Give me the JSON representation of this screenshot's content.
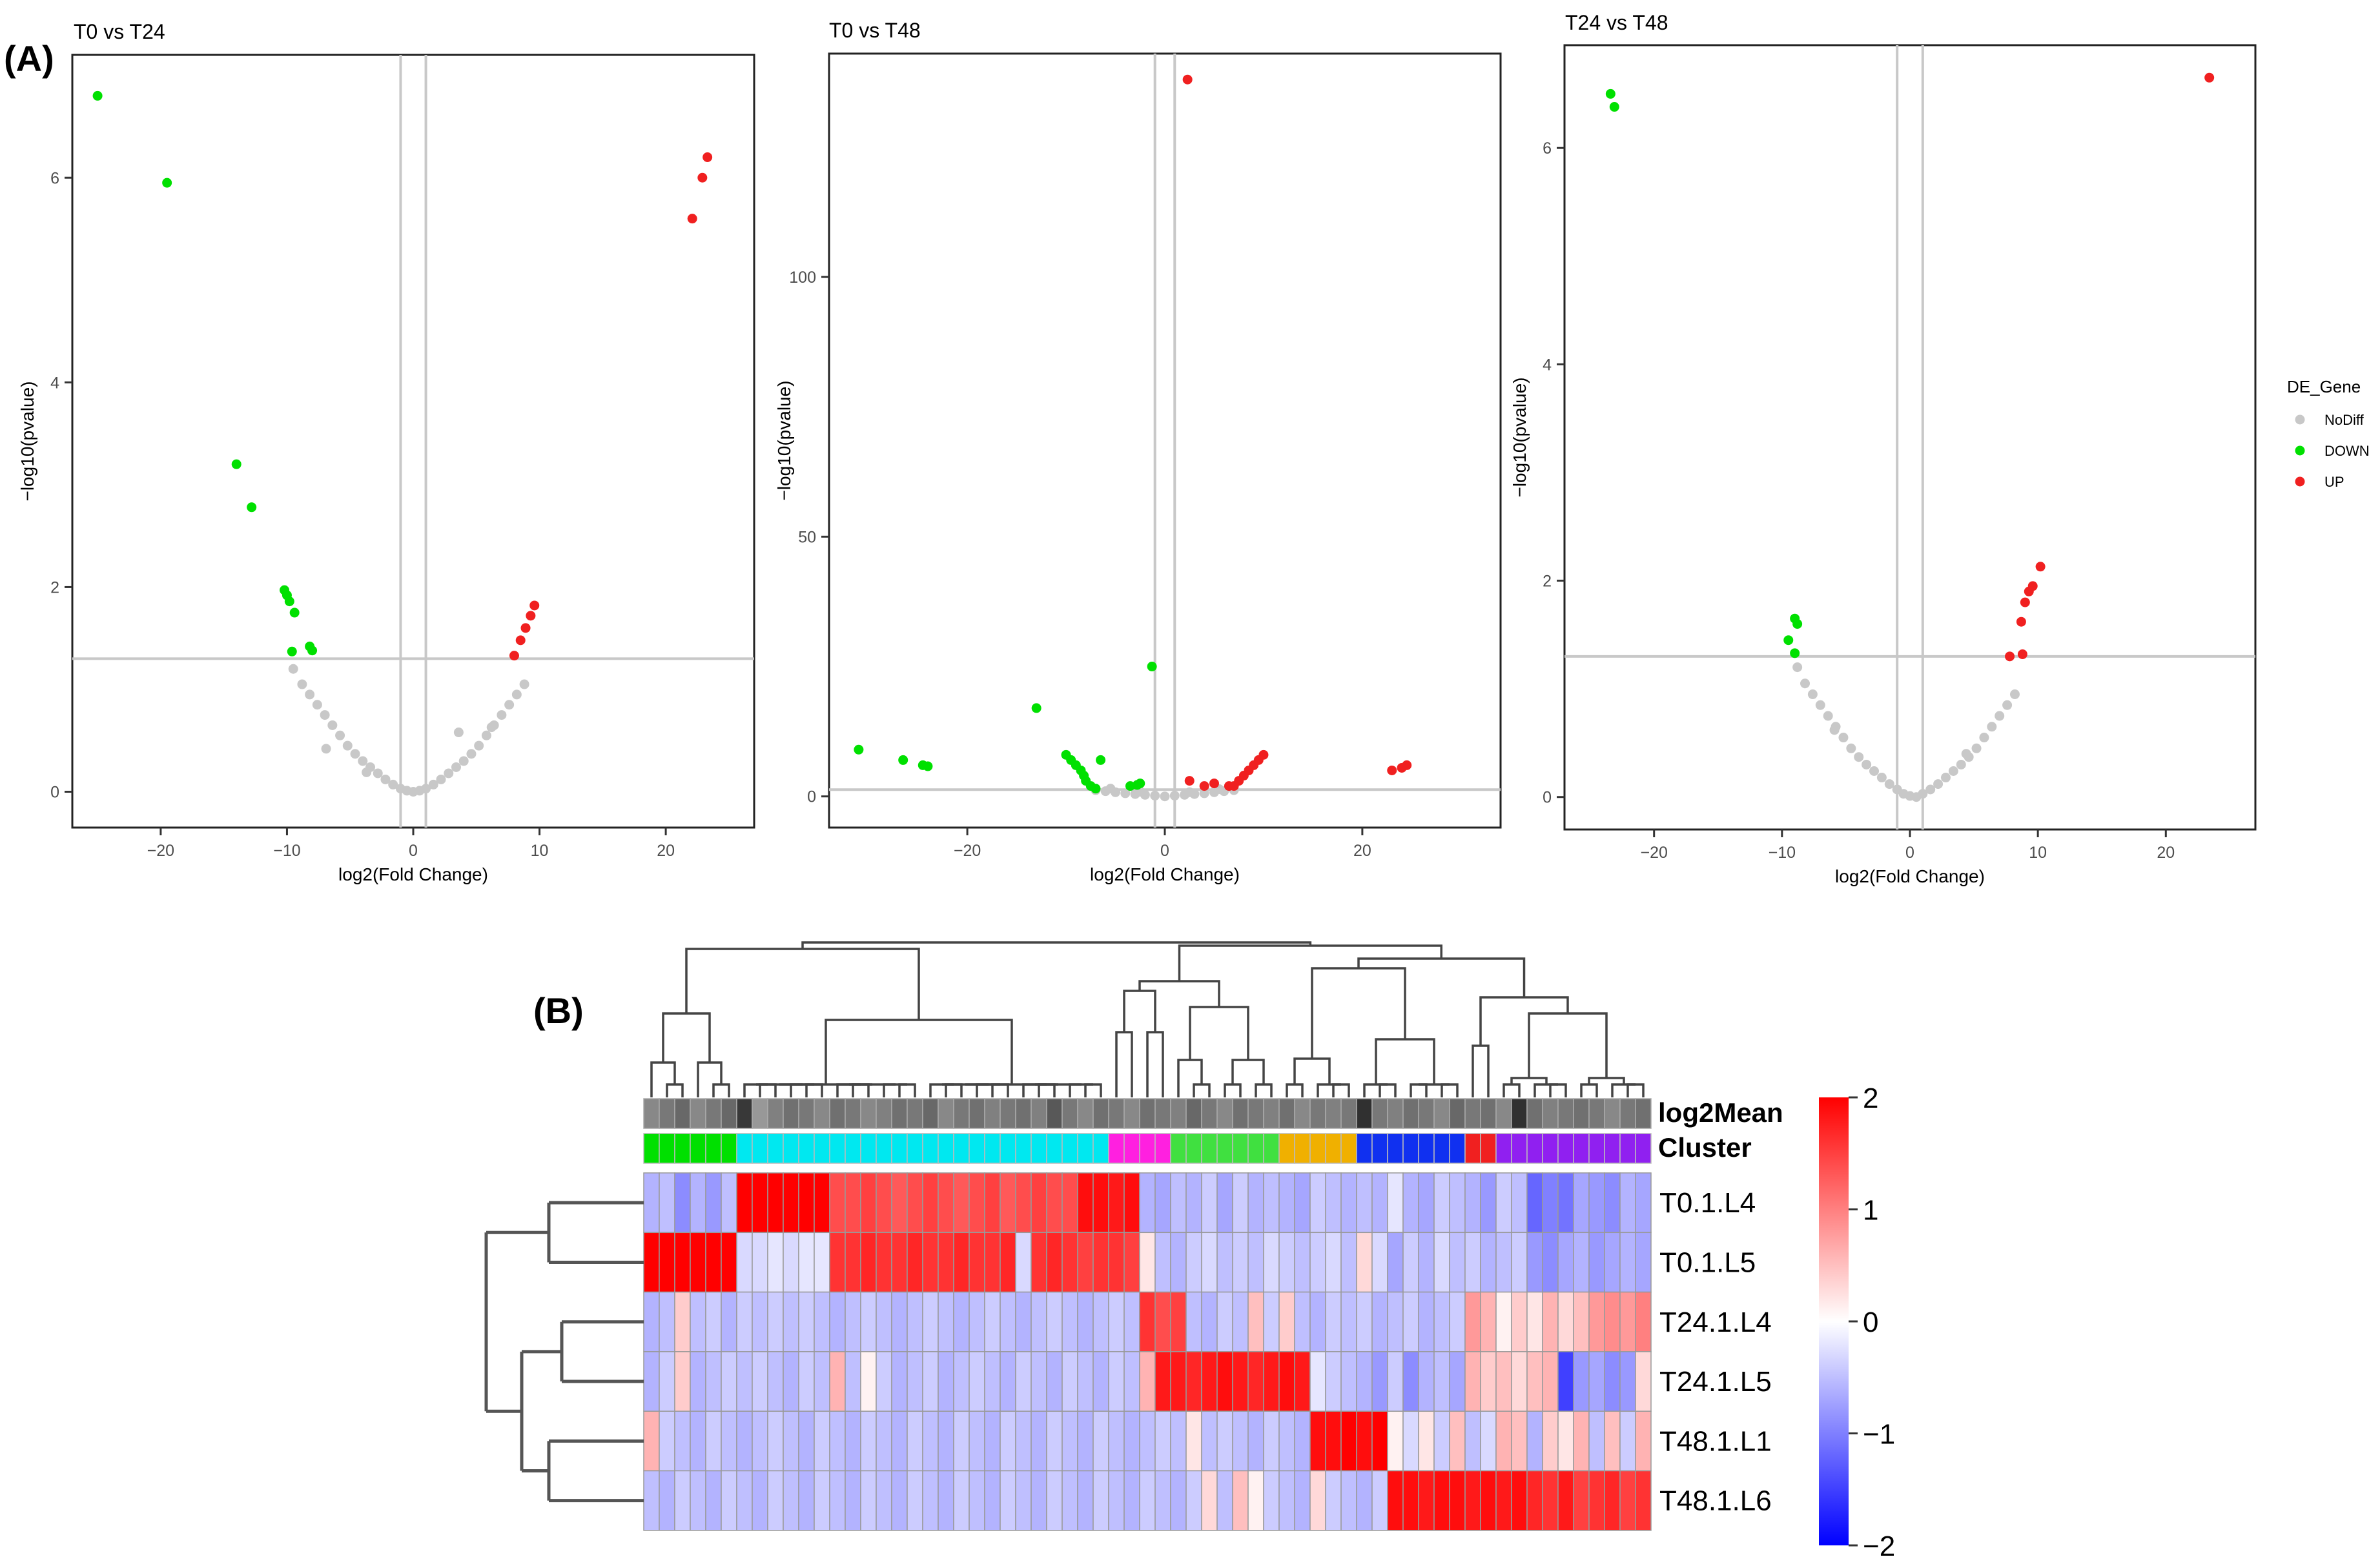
{
  "figure": {
    "panel_a_label": "(A)",
    "panel_b_label": "(B)"
  },
  "chart_data": [
    {
      "type": "scatter",
      "title": "T0 vs T24",
      "xlabel": "log2(Fold Change)",
      "ylabel": "−log10(pvalue)",
      "xlim": [
        -27,
        27
      ],
      "ylim": [
        -0.35,
        7.2
      ],
      "xticks": [
        -20,
        -10,
        0,
        10,
        20
      ],
      "xtick_labels": [
        "−20",
        "−10",
        "0",
        "10",
        "20"
      ],
      "yticks": [
        0,
        2,
        4,
        6
      ],
      "ytick_labels": [
        "0",
        "2",
        "4",
        "6"
      ],
      "vlines": [
        -1,
        1
      ],
      "hline": 1.3,
      "series": [
        {
          "name": "NoDiff",
          "color": "#c8c8c8",
          "x": [
            -9.5,
            -8.8,
            -8.2,
            -7.6,
            -7.0,
            -6.4,
            -5.8,
            -5.2,
            -4.6,
            -4.0,
            -3.4,
            -2.8,
            -2.2,
            -1.6,
            -1.0,
            -0.5,
            0.0,
            0.5,
            1.0,
            1.6,
            2.2,
            2.8,
            3.4,
            4.0,
            4.6,
            5.2,
            5.8,
            6.4,
            7.0,
            7.6,
            8.2,
            8.8,
            -6.9,
            -3.7,
            3.6,
            6.2
          ],
          "y": [
            1.2,
            1.05,
            0.95,
            0.85,
            0.75,
            0.65,
            0.55,
            0.45,
            0.37,
            0.3,
            0.24,
            0.18,
            0.12,
            0.07,
            0.03,
            0.01,
            0.0,
            0.01,
            0.03,
            0.07,
            0.12,
            0.18,
            0.24,
            0.3,
            0.37,
            0.45,
            0.55,
            0.65,
            0.75,
            0.85,
            0.95,
            1.05,
            0.42,
            0.19,
            0.58,
            0.63
          ]
        },
        {
          "name": "DOWN",
          "color": "#00e000",
          "x": [
            -25,
            -19.5,
            -14,
            -12.8,
            -10.2,
            -10.0,
            -9.8,
            -9.4,
            -9.6,
            -8.2,
            -8.0
          ],
          "y": [
            6.8,
            5.95,
            3.2,
            2.78,
            1.97,
            1.92,
            1.86,
            1.75,
            1.37,
            1.42,
            1.38
          ]
        },
        {
          "name": "UP",
          "color": "#f02020",
          "x": [
            23.3,
            22.9,
            22.1,
            9.6,
            9.3,
            8.9,
            8.5,
            8.0
          ],
          "y": [
            6.2,
            6.0,
            5.6,
            1.82,
            1.72,
            1.6,
            1.48,
            1.33
          ]
        }
      ]
    },
    {
      "type": "scatter",
      "title": "T0 vs T48",
      "xlabel": "log2(Fold Change)",
      "ylabel": "−log10(pvalue)",
      "xlim": [
        -34,
        34
      ],
      "ylim": [
        -6,
        143
      ],
      "xticks": [
        -20,
        0,
        20
      ],
      "xtick_labels": [
        "−20",
        "0",
        "20"
      ],
      "yticks": [
        0,
        50,
        100
      ],
      "ytick_labels": [
        "0",
        "50",
        "100"
      ],
      "vlines": [
        -1,
        1
      ],
      "hline": 1.3,
      "series": [
        {
          "name": "NoDiff",
          "color": "#c8c8c8",
          "x": [
            -7.0,
            -6.0,
            -5.0,
            -4.0,
            -3.0,
            -2.0,
            -1.0,
            0.0,
            1.0,
            2.0,
            3.0,
            4.0,
            5.0,
            6.0,
            7.0,
            -5.5,
            5.5,
            -2.5,
            2.5
          ],
          "y": [
            1.2,
            1.0,
            0.8,
            0.6,
            0.45,
            0.3,
            0.15,
            0.0,
            0.15,
            0.3,
            0.45,
            0.6,
            0.8,
            1.0,
            1.2,
            1.5,
            1.4,
            0.9,
            0.8
          ]
        },
        {
          "name": "DOWN",
          "color": "#00e000",
          "x": [
            -31,
            -26.5,
            -24.5,
            -24,
            -13,
            -10,
            -9.5,
            -9,
            -8.5,
            -8.2,
            -8,
            -7.5,
            -7,
            -6.5,
            -1.3,
            -2.5,
            -3.5,
            -2.8
          ],
          "y": [
            9,
            7,
            6,
            5.8,
            17,
            8,
            7,
            6,
            5,
            4,
            3,
            2,
            1.5,
            7,
            25,
            2.5,
            2,
            2.2
          ]
        },
        {
          "name": "UP",
          "color": "#f02020",
          "x": [
            2.3,
            24.5,
            24,
            23,
            10,
            9.5,
            9,
            8.5,
            8,
            7.5,
            7,
            6.5,
            4,
            2.5,
            5
          ],
          "y": [
            138,
            6,
            5.5,
            5,
            8,
            7,
            6,
            5,
            4,
            3,
            2,
            2,
            2,
            3,
            2.5
          ]
        }
      ]
    },
    {
      "type": "scatter",
      "title": "T24 vs T48",
      "xlabel": "log2(Fold Change)",
      "ylabel": "−log10(pvalue)",
      "xlim": [
        -27,
        27
      ],
      "ylim": [
        -0.3,
        6.95
      ],
      "xticks": [
        -20,
        -10,
        0,
        10,
        20
      ],
      "xtick_labels": [
        "−20",
        "−10",
        "0",
        "10",
        "20"
      ],
      "yticks": [
        0,
        2,
        4,
        6
      ],
      "ytick_labels": [
        "0",
        "2",
        "4",
        "6"
      ],
      "vlines": [
        -1,
        1
      ],
      "hline": 1.3,
      "legend": {
        "title": "DE_Gene",
        "entries": [
          "NoDiff",
          "DOWN",
          "UP"
        ],
        "position": "right"
      },
      "series": [
        {
          "name": "NoDiff",
          "color": "#c8c8c8",
          "x": [
            -8.8,
            -8.2,
            -7.6,
            -7.0,
            -6.4,
            -5.8,
            -5.2,
            -4.6,
            -4.0,
            -3.4,
            -2.8,
            -2.2,
            -1.6,
            -1.0,
            -0.5,
            0.0,
            0.5,
            1.0,
            1.6,
            2.2,
            2.8,
            3.4,
            4.0,
            4.6,
            5.2,
            5.8,
            6.4,
            7.0,
            7.6,
            8.2,
            -5.9,
            4.4
          ],
          "y": [
            1.2,
            1.05,
            0.95,
            0.85,
            0.75,
            0.65,
            0.55,
            0.45,
            0.37,
            0.3,
            0.24,
            0.18,
            0.12,
            0.07,
            0.03,
            0.01,
            0.0,
            0.03,
            0.07,
            0.12,
            0.18,
            0.24,
            0.3,
            0.37,
            0.45,
            0.55,
            0.65,
            0.75,
            0.85,
            0.95,
            0.62,
            0.4
          ]
        },
        {
          "name": "DOWN",
          "color": "#00e000",
          "x": [
            -23.4,
            -23.1,
            -9.0,
            -8.8,
            -9.5,
            -9.0
          ],
          "y": [
            6.5,
            6.38,
            1.65,
            1.6,
            1.45,
            1.33
          ]
        },
        {
          "name": "UP",
          "color": "#f02020",
          "x": [
            23.4,
            10.2,
            9.6,
            9.3,
            9.0,
            8.7,
            7.8,
            8.8
          ],
          "y": [
            6.65,
            2.13,
            1.95,
            1.9,
            1.8,
            1.62,
            1.3,
            1.32
          ]
        }
      ]
    },
    {
      "type": "heatmap",
      "title": "",
      "rows": [
        "T0.1.L4",
        "T0.1.L5",
        "T24.1.L4",
        "T24.1.L5",
        "T48.1.L1",
        "T48.1.L6"
      ],
      "annotation_labels": [
        "log2Mean",
        "Cluster"
      ],
      "legend_ticks": [
        2,
        1,
        0,
        -1,
        -2
      ],
      "legend_tick_labels": [
        "2",
        "1",
        "0",
        "−1",
        "−2"
      ],
      "colorscale": [
        "#0000ff",
        "#ffffff",
        "#ff0000"
      ],
      "range": [
        -2,
        2
      ],
      "clusters": [
        {
          "name": "green",
          "color": "#00e000",
          "n": 6
        },
        {
          "name": "cyan",
          "color": "#00e8f0",
          "n": 24
        },
        {
          "name": "magenta",
          "color": "#ff20e0",
          "n": 4
        },
        {
          "name": "lime",
          "color": "#40e040",
          "n": 7
        },
        {
          "name": "orange",
          "color": "#f0b000",
          "n": 5
        },
        {
          "name": "blue",
          "color": "#1030f0",
          "n": 7
        },
        {
          "name": "red",
          "color": "#f02020",
          "n": 2
        },
        {
          "name": "violet",
          "color": "#9020f0",
          "n": 10
        }
      ],
      "log2mean": [
        0.6,
        0.5,
        0.4,
        0.6,
        0.5,
        0.4,
        0.1,
        0.7,
        0.55,
        0.45,
        0.5,
        0.6,
        0.45,
        0.5,
        0.6,
        0.55,
        0.45,
        0.5,
        0.4,
        0.6,
        0.5,
        0.45,
        0.55,
        0.5,
        0.45,
        0.55,
        0.3,
        0.5,
        0.6,
        0.45,
        0.5,
        0.6,
        0.45,
        0.5,
        0.55,
        0.4,
        0.5,
        0.6,
        0.45,
        0.5,
        0.55,
        0.45,
        0.6,
        0.5,
        0.55,
        0.5,
        0.05,
        0.5,
        0.55,
        0.45,
        0.5,
        0.6,
        0.4,
        0.5,
        0.45,
        0.6,
        0.05,
        0.45,
        0.55,
        0.5,
        0.45,
        0.5,
        0.6,
        0.5,
        0.45
      ],
      "values": [
        [
          -0.6,
          -0.5,
          -0.9,
          -0.6,
          -0.8,
          -0.5,
          2,
          2,
          2,
          2,
          2,
          2,
          1.4,
          1.4,
          1.5,
          1.4,
          1.3,
          1.4,
          1.5,
          1.4,
          1.3,
          1.4,
          1.5,
          1.3,
          1.4,
          1.5,
          1.4,
          1.4,
          1.9,
          1.9,
          1.8,
          1.9,
          -0.6,
          -0.7,
          -0.5,
          -0.6,
          -0.4,
          -0.7,
          -0.4,
          -0.6,
          -0.5,
          -0.6,
          -0.7,
          -0.4,
          -0.5,
          -0.6,
          -0.5,
          -0.6,
          -0.2,
          -0.6,
          -0.7,
          -0.4,
          -0.5,
          -0.6,
          -0.8,
          -0.4,
          -0.5,
          -1.2,
          -1.0,
          -1.1,
          -0.7,
          -0.8,
          -0.9,
          -0.6,
          -0.7
        ],
        [
          2,
          2,
          2,
          2,
          2,
          2,
          -0.3,
          -0.3,
          -0.2,
          -0.3,
          -0.2,
          -0.2,
          1.6,
          1.6,
          1.7,
          1.6,
          1.6,
          1.7,
          1.6,
          1.6,
          1.7,
          1.6,
          1.6,
          1.7,
          -0.3,
          1.6,
          1.7,
          1.6,
          1.5,
          1.6,
          1.6,
          1.5,
          0.2,
          -0.5,
          -0.6,
          -0.4,
          -0.3,
          -0.5,
          -0.4,
          -0.5,
          -0.3,
          -0.4,
          -0.5,
          -0.4,
          -0.3,
          -0.5,
          0.3,
          -0.3,
          -0.7,
          -0.4,
          -0.6,
          -0.3,
          -0.5,
          -0.4,
          -0.6,
          -0.5,
          -0.4,
          -0.8,
          -0.9,
          -0.7,
          -0.6,
          -0.8,
          -0.7,
          -0.6,
          -0.7
        ],
        [
          -0.6,
          -0.5,
          0.4,
          -0.5,
          -0.4,
          -0.6,
          -0.4,
          -0.5,
          -0.4,
          -0.5,
          -0.4,
          -0.5,
          -0.6,
          -0.5,
          -0.4,
          -0.5,
          -0.6,
          -0.5,
          -0.4,
          -0.5,
          -0.6,
          -0.5,
          -0.4,
          -0.5,
          -0.6,
          -0.5,
          -0.4,
          -0.5,
          -0.6,
          -0.5,
          -0.4,
          -0.5,
          1.6,
          1.4,
          1.5,
          -0.5,
          -0.6,
          -0.4,
          -0.5,
          0.5,
          -0.4,
          0.4,
          -0.5,
          -0.6,
          -0.4,
          -0.5,
          -0.4,
          -0.6,
          -0.5,
          -0.4,
          -0.6,
          -0.5,
          -0.4,
          0.8,
          0.6,
          0.1,
          0.4,
          0.2,
          0.6,
          0.3,
          0.5,
          0.8,
          0.9,
          0.8,
          1.0
        ],
        [
          -0.6,
          -0.4,
          0.4,
          -0.6,
          -0.5,
          -0.4,
          -0.5,
          -0.4,
          -0.5,
          -0.6,
          -0.4,
          -0.5,
          0.6,
          -0.5,
          0.1,
          -0.4,
          -0.6,
          -0.5,
          -0.4,
          -0.6,
          -0.5,
          -0.4,
          -0.5,
          -0.6,
          -0.4,
          -0.5,
          -0.6,
          -0.4,
          -0.5,
          -0.6,
          -0.4,
          -0.5,
          0.6,
          1.8,
          1.8,
          1.7,
          1.8,
          1.9,
          1.8,
          1.7,
          1.8,
          1.9,
          1.8,
          -0.2,
          -0.4,
          -0.5,
          -0.6,
          -0.8,
          -0.4,
          -0.9,
          -0.6,
          -0.5,
          -0.7,
          0.6,
          0.4,
          0.5,
          0.3,
          0.5,
          0.6,
          -1.5,
          -0.8,
          -0.7,
          -0.9,
          -0.8,
          0.3
        ],
        [
          0.6,
          -0.4,
          -0.5,
          -0.6,
          -0.4,
          -0.5,
          -0.6,
          -0.5,
          -0.4,
          -0.5,
          -0.6,
          -0.4,
          -0.5,
          -0.6,
          -0.4,
          -0.5,
          -0.6,
          -0.4,
          -0.5,
          -0.6,
          -0.4,
          -0.5,
          -0.6,
          -0.4,
          -0.5,
          -0.6,
          -0.4,
          -0.5,
          -0.6,
          -0.4,
          -0.5,
          -0.6,
          -0.5,
          -0.4,
          -0.5,
          0.2,
          -0.5,
          -0.4,
          -0.5,
          -0.6,
          -0.4,
          -0.5,
          -0.6,
          1.9,
          1.9,
          2,
          1.9,
          2,
          0.1,
          -0.3,
          0.2,
          -0.4,
          0.5,
          -0.5,
          -0.3,
          0.6,
          0.5,
          -0.6,
          0.4,
          0.2,
          0.6,
          -0.5,
          0.5,
          -0.4,
          0.6
        ],
        [
          -0.5,
          -0.6,
          -0.4,
          -0.5,
          -0.6,
          -0.4,
          -0.5,
          -0.6,
          -0.4,
          -0.5,
          -0.6,
          -0.4,
          -0.5,
          -0.6,
          -0.4,
          -0.5,
          -0.6,
          -0.4,
          -0.5,
          -0.6,
          -0.4,
          -0.5,
          -0.6,
          -0.4,
          -0.5,
          -0.6,
          -0.4,
          -0.5,
          -0.6,
          -0.4,
          -0.5,
          -0.6,
          -0.4,
          -0.5,
          -0.6,
          -0.4,
          0.3,
          -0.5,
          0.5,
          0.1,
          -0.4,
          -0.5,
          -0.6,
          0.3,
          -0.4,
          -0.5,
          -0.6,
          -0.4,
          1.9,
          1.9,
          1.8,
          1.9,
          1.9,
          1.8,
          1.9,
          1.8,
          1.9,
          1.7,
          1.6,
          1.8,
          1.5,
          1.6,
          1.7,
          1.5,
          1.6
        ]
      ]
    }
  ]
}
